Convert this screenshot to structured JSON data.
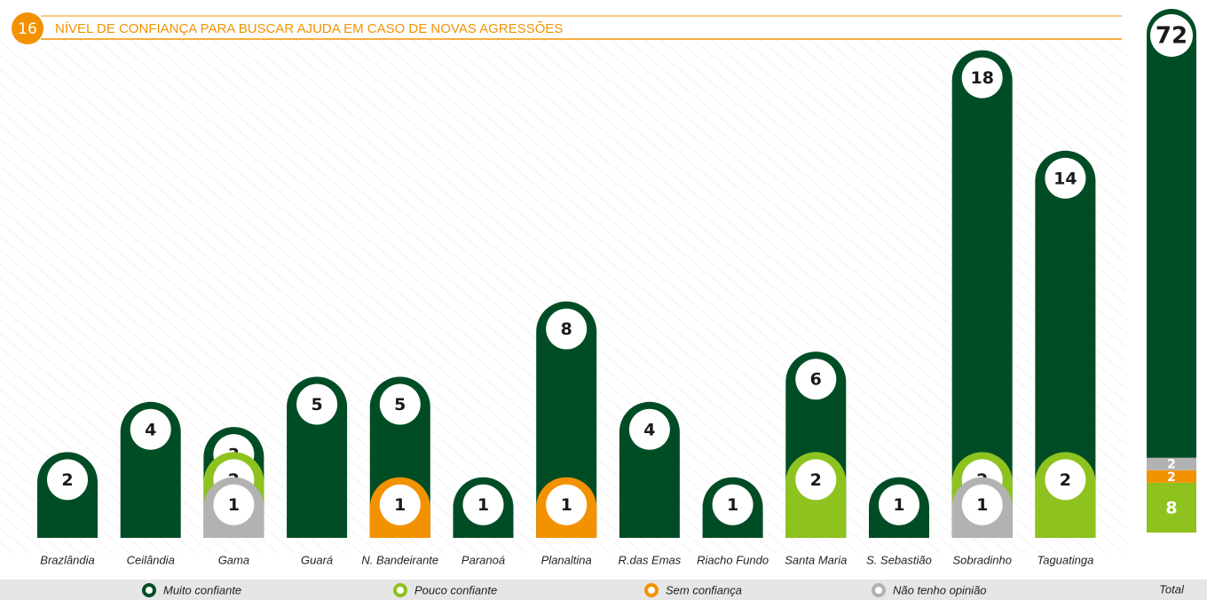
{
  "chart_data": {
    "type": "bar",
    "number": "16",
    "title": "NÍVEL DE CONFIANÇA PARA BUSCAR AJUDA EM CASO DE NOVAS AGRESSÕES",
    "categories": [
      "Brazlândia",
      "Ceilândia",
      "Gama",
      "Guará",
      "N. Bandeirante",
      "Paranoá",
      "Planaltina",
      "R.das Emas",
      "Riacho Fundo",
      "Santa Maria",
      "S. Sebastião",
      "Sobradinho",
      "Taguatinga"
    ],
    "series": [
      {
        "name": "Muito confiante",
        "color": "#004d25",
        "values": [
          2,
          4,
          3,
          5,
          5,
          1,
          8,
          4,
          1,
          6,
          1,
          18,
          14
        ]
      },
      {
        "name": "Pouco confiante",
        "color": "#8dc21f",
        "values": [
          null,
          null,
          2,
          null,
          null,
          null,
          null,
          null,
          null,
          2,
          null,
          2,
          2
        ]
      },
      {
        "name": "Sem confiança",
        "color": "#f39200",
        "values": [
          null,
          null,
          null,
          null,
          1,
          null,
          1,
          null,
          null,
          null,
          null,
          null,
          null
        ]
      },
      {
        "name": "Não tenho opinião",
        "color": "#b2b2b2",
        "values": [
          null,
          null,
          1,
          null,
          null,
          null,
          null,
          null,
          null,
          null,
          null,
          1,
          null
        ]
      }
    ],
    "total": {
      "label": "Total",
      "values": [
        72,
        8,
        2,
        2
      ]
    }
  }
}
